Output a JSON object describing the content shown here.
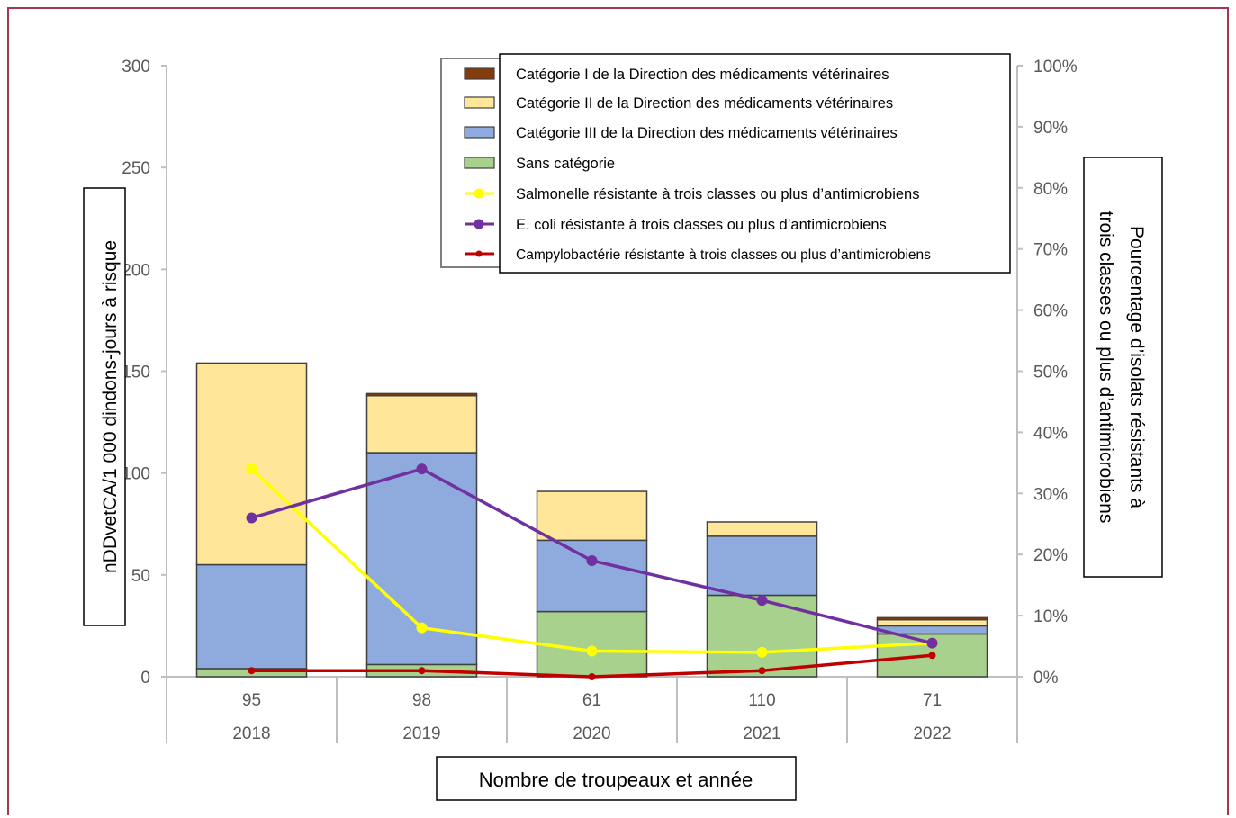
{
  "chart_data": {
    "type": "bar",
    "stacked": true,
    "categories": [
      "2018",
      "2019",
      "2020",
      "2021",
      "2022"
    ],
    "flocks": [
      "95",
      "98",
      "61",
      "110",
      "71"
    ],
    "xlabel": "Nombre de troupeaux et année",
    "ylabel": "nDDvetCA/1 000 dindons-jours à risque",
    "ylabel_right": [
      "Pourcentage d’isolats résistants à",
      "trois classes ou plus d’antimicrobiens"
    ],
    "ylim": [
      0,
      300
    ],
    "ylim_right": [
      0,
      100
    ],
    "yticks": [
      "0",
      "50",
      "100",
      "150",
      "200",
      "250",
      "300"
    ],
    "yticks_right": [
      "0%",
      "10%",
      "20%",
      "30%",
      "40%",
      "50%",
      "60%",
      "70%",
      "80%",
      "90%",
      "100%"
    ],
    "bar_series": [
      {
        "name": "Sans catégorie",
        "color": "#a9d18e",
        "values": [
          4,
          6,
          32,
          40,
          21
        ]
      },
      {
        "name": "Catégorie III de la Direction des médicaments vétérinaires",
        "color": "#8faadc",
        "values": [
          51,
          104,
          35,
          29,
          4
        ]
      },
      {
        "name": "Catégorie II de la Direction des médicaments vétérinaires",
        "color": "#ffe699",
        "values": [
          99,
          28,
          24,
          7,
          3
        ]
      },
      {
        "name": "Catégorie I de la Direction des médicaments vétérinaires",
        "color": "#843c0c",
        "values": [
          0,
          1,
          0,
          0,
          1
        ]
      }
    ],
    "line_series": [
      {
        "name": "Salmonelle résistante à trois classes ou plus d’antimicrobiens",
        "color": "#ffff00",
        "values": [
          34,
          8,
          4.2,
          4,
          5.5
        ]
      },
      {
        "name": "E. coli résistante à trois classes ou plus d’antimicrobiens",
        "color": "#7030a0",
        "values": [
          26,
          34,
          19,
          12.5,
          5.5
        ]
      },
      {
        "name": "Campylobactérie résistante à trois classes ou plus d’antimicrobiens",
        "color": "#c00000",
        "values": [
          1,
          1,
          0,
          1,
          3.5
        ]
      }
    ],
    "grid": false,
    "legend_position": "top-center"
  }
}
